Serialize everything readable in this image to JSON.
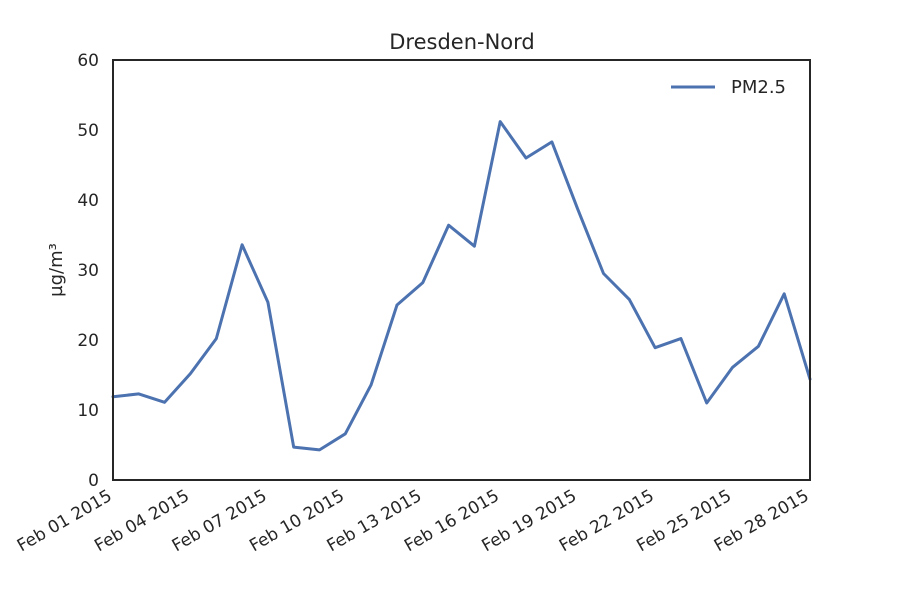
{
  "chart_data": {
    "type": "line",
    "title": "Dresden-Nord",
    "xlabel": "",
    "ylabel": "µg/m³",
    "x_start_label": "Feb 01 2015",
    "x": [
      "2015-02-01",
      "2015-02-02",
      "2015-02-03",
      "2015-02-04",
      "2015-02-05",
      "2015-02-06",
      "2015-02-07",
      "2015-02-08",
      "2015-02-09",
      "2015-02-10",
      "2015-02-11",
      "2015-02-12",
      "2015-02-13",
      "2015-02-14",
      "2015-02-15",
      "2015-02-16",
      "2015-02-17",
      "2015-02-18",
      "2015-02-19",
      "2015-02-20",
      "2015-02-21",
      "2015-02-22",
      "2015-02-23",
      "2015-02-24",
      "2015-02-25",
      "2015-02-26",
      "2015-02-27",
      "2015-02-28"
    ],
    "xlim": [
      "2015-02-01",
      "2015-02-28"
    ],
    "ylim": [
      0,
      60
    ],
    "yticks": [
      0,
      10,
      20,
      30,
      40,
      50,
      60
    ],
    "xticks": [
      {
        "date": "2015-02-01",
        "label": "Feb 01 2015"
      },
      {
        "date": "2015-02-04",
        "label": "Feb 04 2015"
      },
      {
        "date": "2015-02-07",
        "label": "Feb 07 2015"
      },
      {
        "date": "2015-02-10",
        "label": "Feb 10 2015"
      },
      {
        "date": "2015-02-13",
        "label": "Feb 13 2015"
      },
      {
        "date": "2015-02-16",
        "label": "Feb 16 2015"
      },
      {
        "date": "2015-02-19",
        "label": "Feb 19 2015"
      },
      {
        "date": "2015-02-22",
        "label": "Feb 22 2015"
      },
      {
        "date": "2015-02-25",
        "label": "Feb 25 2015"
      },
      {
        "date": "2015-02-28",
        "label": "Feb 28 2015"
      }
    ],
    "series": [
      {
        "name": "PM2.5",
        "color": "#4c72b0",
        "values": [
          11.9,
          12.3,
          11.1,
          15.2,
          20.2,
          33.6,
          25.4,
          4.7,
          4.3,
          6.6,
          13.6,
          25.0,
          28.2,
          36.4,
          33.4,
          51.2,
          46.0,
          48.3,
          38.7,
          29.5,
          25.8,
          18.9,
          20.2,
          11.0,
          16.1,
          19.1,
          26.6,
          14.4
        ]
      }
    ],
    "legend": {
      "position": "top-right"
    },
    "grid": false
  }
}
